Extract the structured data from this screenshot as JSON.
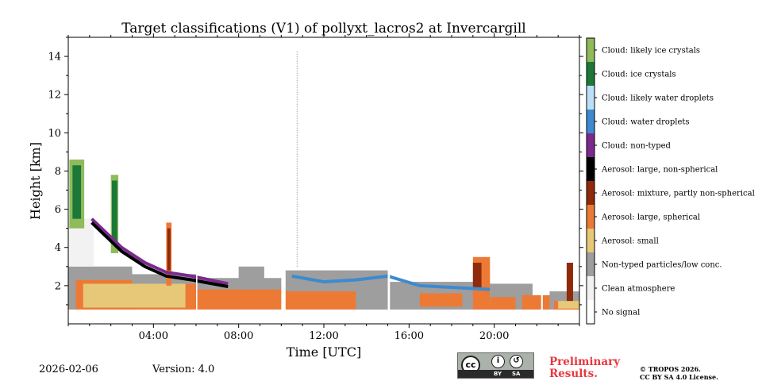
{
  "chart_data": {
    "type": "heatmap",
    "title": "Target classifications (V1) of pollyxt_lacros2 at Invercargill",
    "xlabel": "Time [UTC]",
    "ylabel": "Height [km]",
    "xlim_hours": [
      0,
      24
    ],
    "ylim_km": [
      0,
      15
    ],
    "x_ticks_hours": [
      4,
      8,
      12,
      16,
      20
    ],
    "x_tick_labels": [
      "04:00",
      "08:00",
      "12:00",
      "16:00",
      "20:00"
    ],
    "y_ticks": [
      2,
      4,
      6,
      8,
      10,
      12,
      14
    ],
    "y_tick_labels": [
      "2",
      "4",
      "6",
      "8",
      "10",
      "12",
      "14"
    ],
    "classes": [
      {
        "id": 0,
        "label": "No signal",
        "color": "#ffffff"
      },
      {
        "id": 1,
        "label": "Clean atmosphere",
        "color": "#f2f2f2"
      },
      {
        "id": 2,
        "label": "Non-typed particles/low conc.",
        "color": "#9e9e9e"
      },
      {
        "id": 3,
        "label": "Aerosol: small",
        "color": "#e6c878"
      },
      {
        "id": 4,
        "label": "Aerosol: large, spherical",
        "color": "#ec7a35"
      },
      {
        "id": 5,
        "label": "Aerosol: mixture, partly non-spherical",
        "color": "#8f2a0a"
      },
      {
        "id": 6,
        "label": "Aerosol: large, non-spherical",
        "color": "#000000"
      },
      {
        "id": 7,
        "label": "Cloud: non-typed",
        "color": "#7b2a8e"
      },
      {
        "id": 8,
        "label": "Cloud: water droplets",
        "color": "#3d8ad0"
      },
      {
        "id": 9,
        "label": "Cloud: likely water droplets",
        "color": "#bcdff7"
      },
      {
        "id": 10,
        "label": "Cloud: ice crystals",
        "color": "#1b7837"
      },
      {
        "id": 11,
        "label": "Cloud: likely ice crystals",
        "color": "#8fbb5b"
      }
    ],
    "features": [
      {
        "type": "region",
        "class": 4,
        "t0": 0.0,
        "t1": 0.35,
        "h0": 0.75,
        "h1": 1.2
      },
      {
        "type": "region",
        "class": 2,
        "t0": 0.0,
        "t1": 3.0,
        "h0": 0.75,
        "h1": 3.0
      },
      {
        "type": "region",
        "class": 1,
        "t0": 0.0,
        "t1": 1.2,
        "h0": 3.0,
        "h1": 5.5
      },
      {
        "type": "region",
        "class": 4,
        "t0": 0.35,
        "t1": 6.0,
        "h0": 0.75,
        "h1": 2.3
      },
      {
        "type": "region",
        "class": 3,
        "t0": 0.7,
        "t1": 5.5,
        "h0": 0.85,
        "h1": 2.1
      },
      {
        "type": "region",
        "class": 2,
        "t0": 3.0,
        "t1": 6.0,
        "h0": 2.1,
        "h1": 2.6
      },
      {
        "type": "region",
        "class": 11,
        "t0": 0.05,
        "t1": 0.75,
        "h0": 5.0,
        "h1": 8.6
      },
      {
        "type": "region",
        "class": 10,
        "t0": 0.2,
        "t1": 0.6,
        "h0": 5.5,
        "h1": 8.3
      },
      {
        "type": "region",
        "class": 11,
        "t0": 2.0,
        "t1": 2.35,
        "h0": 3.7,
        "h1": 7.8
      },
      {
        "type": "region",
        "class": 10,
        "t0": 2.05,
        "t1": 2.3,
        "h0": 4.2,
        "h1": 7.5
      },
      {
        "type": "region",
        "class": 4,
        "t0": 4.6,
        "t1": 4.85,
        "h0": 2.0,
        "h1": 5.3
      },
      {
        "type": "region",
        "class": 5,
        "t0": 4.65,
        "t1": 4.8,
        "h0": 2.8,
        "h1": 5.0
      },
      {
        "type": "region",
        "class": 4,
        "t0": 6.0,
        "t1": 10.0,
        "h0": 0.75,
        "h1": 2.0
      },
      {
        "type": "region",
        "class": 2,
        "t0": 6.0,
        "t1": 10.0,
        "h0": 1.8,
        "h1": 2.4
      },
      {
        "type": "region",
        "class": 2,
        "t0": 8.0,
        "t1": 9.2,
        "h0": 1.8,
        "h1": 3.0
      },
      {
        "type": "region",
        "class": 4,
        "t0": 10.2,
        "t1": 15.0,
        "h0": 0.75,
        "h1": 1.8
      },
      {
        "type": "region",
        "class": 2,
        "t0": 10.2,
        "t1": 15.0,
        "h0": 1.7,
        "h1": 2.8
      },
      {
        "type": "region",
        "class": 2,
        "t0": 13.5,
        "t1": 15.0,
        "h0": 0.75,
        "h1": 1.8
      },
      {
        "type": "region",
        "class": 2,
        "t0": 15.1,
        "t1": 19.8,
        "h0": 0.75,
        "h1": 2.2
      },
      {
        "type": "region",
        "class": 4,
        "t0": 16.5,
        "t1": 18.5,
        "h0": 0.9,
        "h1": 1.6
      },
      {
        "type": "region",
        "class": 4,
        "t0": 19.0,
        "t1": 19.8,
        "h0": 0.75,
        "h1": 3.5
      },
      {
        "type": "region",
        "class": 5,
        "t0": 19.0,
        "t1": 19.4,
        "h0": 1.8,
        "h1": 3.2
      },
      {
        "type": "region",
        "class": 2,
        "t0": 19.8,
        "t1": 21.8,
        "h0": 0.75,
        "h1": 2.1
      },
      {
        "type": "region",
        "class": 4,
        "t0": 19.8,
        "t1": 21.0,
        "h0": 0.75,
        "h1": 1.4
      },
      {
        "type": "region",
        "class": 4,
        "t0": 21.3,
        "t1": 22.8,
        "h0": 0.75,
        "h1": 1.5
      },
      {
        "type": "region",
        "class": 2,
        "t0": 22.6,
        "t1": 24.0,
        "h0": 0.75,
        "h1": 1.7
      },
      {
        "type": "region",
        "class": 4,
        "t0": 22.8,
        "t1": 24.0,
        "h0": 0.75,
        "h1": 1.2
      },
      {
        "type": "region",
        "class": 3,
        "t0": 23.0,
        "t1": 24.0,
        "h0": 0.8,
        "h1": 1.2
      },
      {
        "type": "region",
        "class": 5,
        "t0": 23.4,
        "t1": 23.7,
        "h0": 1.2,
        "h1": 3.2
      },
      {
        "type": "line",
        "class": 7,
        "points": [
          [
            1.1,
            5.5
          ],
          [
            2.5,
            4.0
          ],
          [
            3.6,
            3.2
          ],
          [
            4.6,
            2.7
          ],
          [
            5.8,
            2.5
          ],
          [
            7.5,
            2.1
          ]
        ]
      },
      {
        "type": "line",
        "class": 6,
        "points": [
          [
            1.1,
            5.3
          ],
          [
            2.5,
            3.8
          ],
          [
            3.6,
            3.0
          ],
          [
            4.6,
            2.5
          ],
          [
            5.8,
            2.3
          ],
          [
            7.5,
            1.95
          ]
        ]
      },
      {
        "type": "line",
        "class": 8,
        "points": [
          [
            10.5,
            2.5
          ],
          [
            12.0,
            2.2
          ],
          [
            13.5,
            2.3
          ],
          [
            15.0,
            2.5
          ],
          [
            16.5,
            2.0
          ],
          [
            19.8,
            1.8
          ]
        ]
      },
      {
        "type": "column",
        "class": 2,
        "t": 10.75,
        "h0": 3.0,
        "h1": 14.3
      }
    ],
    "gaps_hours": [
      [
        6.0,
        6.06
      ],
      [
        10.02,
        10.2
      ],
      [
        15.0,
        15.1
      ],
      [
        22.2,
        22.28
      ]
    ]
  },
  "footer": {
    "date": "2026-02-06",
    "version": "Version: 4.0",
    "license_badge": {
      "cc": "cc",
      "by": "BY",
      "sa": "SA"
    },
    "preliminary_line1": "Preliminary",
    "preliminary_line2": "Results.",
    "copyright_line1": "© TROPOS 2026.",
    "copyright_line2": "CC BY SA 4.0 License."
  }
}
